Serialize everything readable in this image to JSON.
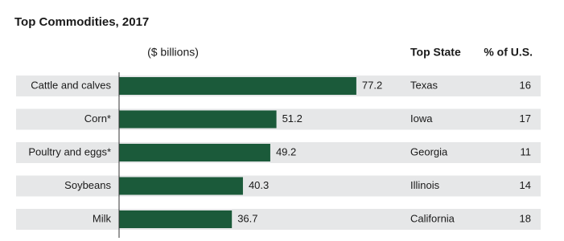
{
  "chart_data": {
    "type": "bar",
    "title": "Top Commodities, 2017",
    "unit_label": "($ billions)",
    "categories": [
      "Cattle and calves",
      "Corn*",
      "Poultry and eggs*",
      "Soybeans",
      "Milk"
    ],
    "values": [
      77.2,
      51.2,
      49.2,
      40.3,
      36.7
    ],
    "color": "#1b5a3a",
    "table": {
      "columns": [
        "Top State",
        "% of U.S."
      ],
      "top_state": [
        "Texas",
        "Iowa",
        "Georgia",
        "Illinois",
        "California"
      ],
      "percent_of_us": [
        16,
        17,
        11,
        14,
        18
      ]
    }
  }
}
